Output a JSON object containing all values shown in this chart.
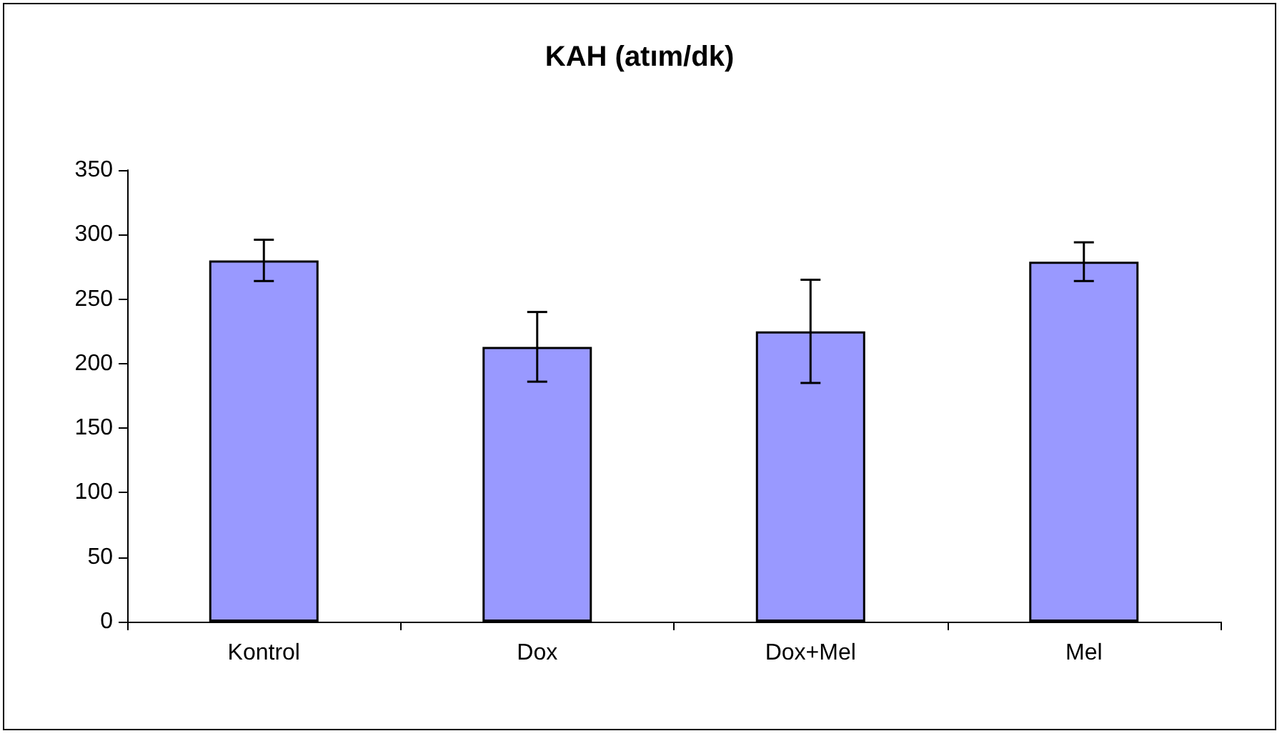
{
  "chart_data": {
    "type": "bar",
    "title": "KAH (atım/dk)",
    "categories": [
      "Kontrol",
      "Dox",
      "Dox+Mel",
      "Mel"
    ],
    "values": [
      280,
      213,
      225,
      279
    ],
    "errors": [
      16,
      27,
      40,
      15
    ],
    "color": "#9999ff",
    "ylim": [
      0,
      350
    ],
    "yticks": [
      0,
      50,
      100,
      150,
      200,
      250,
      300,
      350
    ],
    "grid": false
  }
}
